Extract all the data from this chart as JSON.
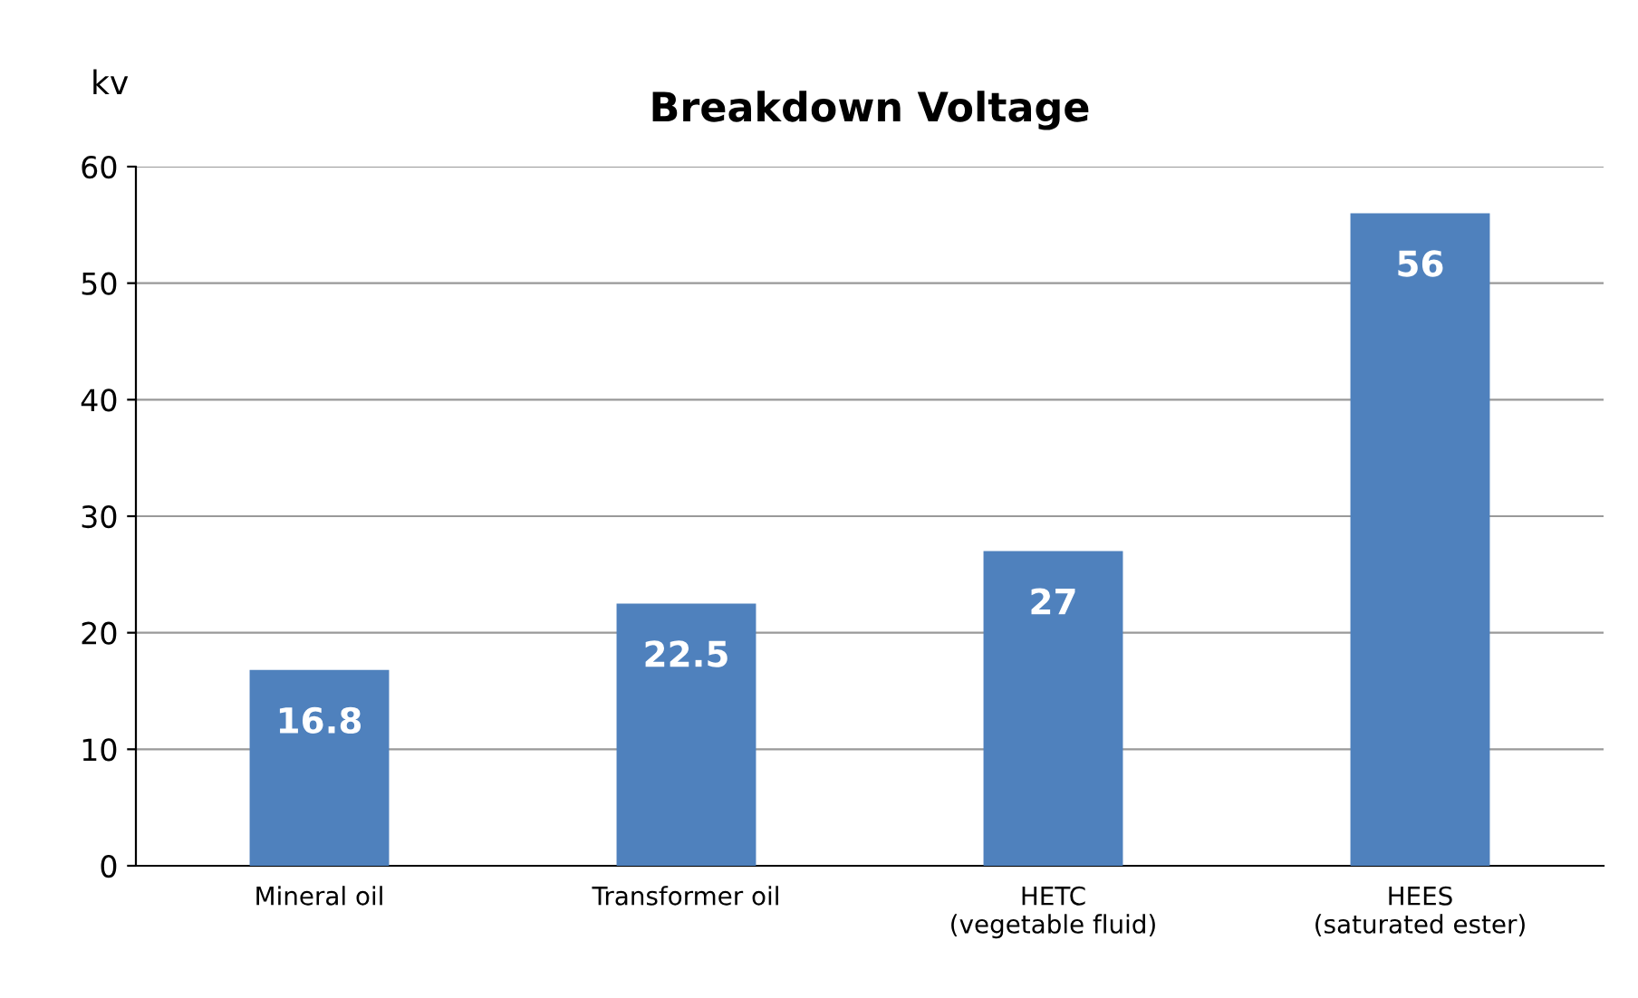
{
  "chart_data": {
    "type": "bar",
    "title": "Breakdown Voltage",
    "ylabel": "kv",
    "categories": [
      "Mineral oil",
      "Transformer oil",
      "HETC\n(vegetable fluid)",
      "HEES\n(saturated ester)"
    ],
    "values": [
      16.8,
      22.5,
      27,
      56
    ],
    "color": "#4f81bd",
    "ylim": [
      0,
      60
    ],
    "yticks": [
      0,
      10,
      20,
      30,
      40,
      50,
      60
    ],
    "grid": "y",
    "data_labels": true
  }
}
